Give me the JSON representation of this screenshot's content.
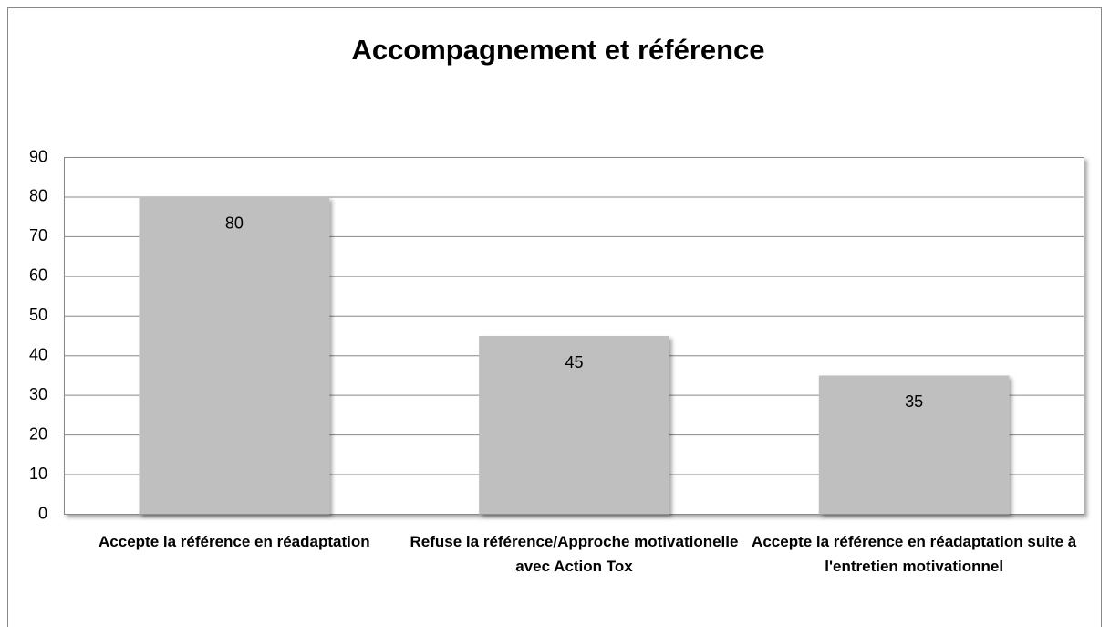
{
  "chart_data": {
    "type": "bar",
    "title": "Accompagnement et référence",
    "categories": [
      "Accepte la référence en réadaptation",
      "Refuse la référence/Approche motivationelle avec  Action Tox",
      "Accepte la référence en réadaptation suite à l'entretien motivationnel"
    ],
    "values": [
      80,
      45,
      35
    ],
    "color": "#bfbfbf",
    "ylim": [
      0,
      90
    ],
    "yticks": [
      0,
      10,
      20,
      30,
      40,
      50,
      60,
      70,
      80,
      90
    ],
    "grid": true
  }
}
